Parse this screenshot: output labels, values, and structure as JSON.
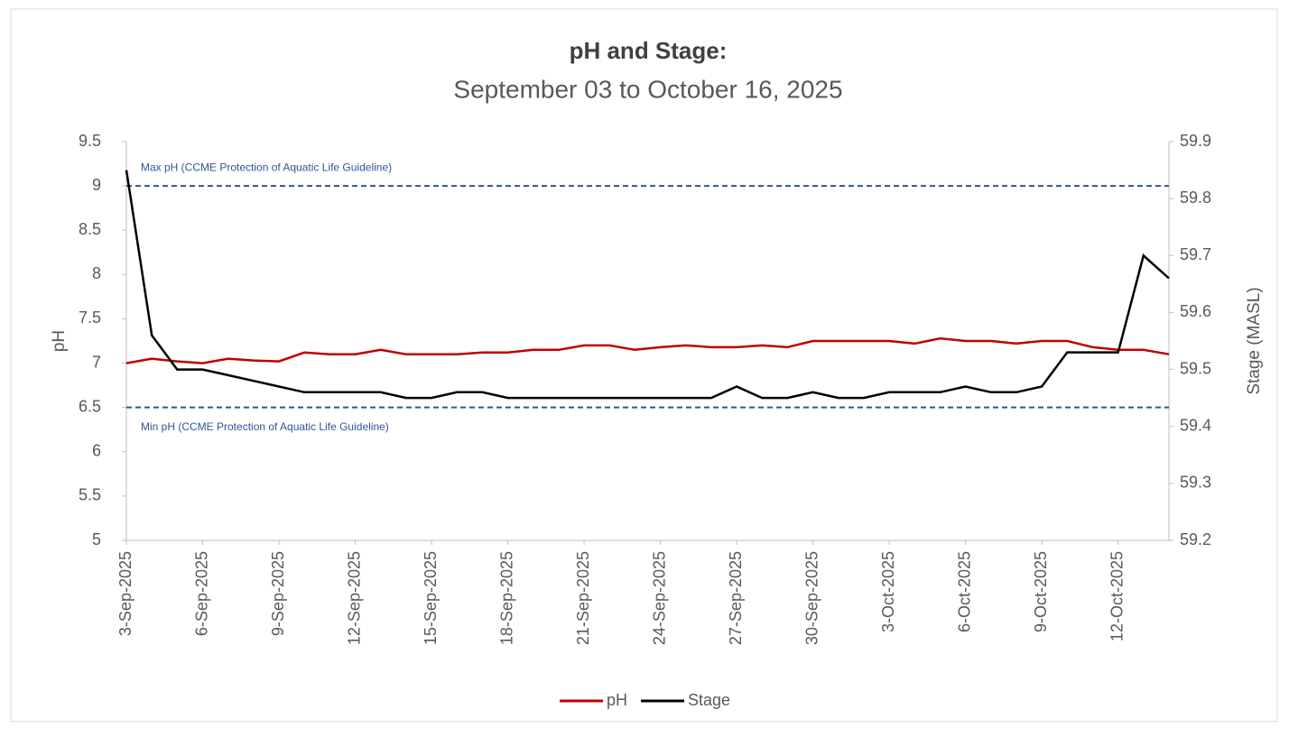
{
  "chart_data": {
    "type": "line",
    "title": "pH and Stage:",
    "subtitle": "September 03 to October 16, 2025",
    "y_label": "pH",
    "y2_label": "Stage (MASL)",
    "x": [
      "2025-09-03",
      "2025-09-04",
      "2025-09-05",
      "2025-09-06",
      "2025-09-07",
      "2025-09-08",
      "2025-09-09",
      "2025-09-10",
      "2025-09-11",
      "2025-09-12",
      "2025-09-13",
      "2025-09-14",
      "2025-09-15",
      "2025-09-16",
      "2025-09-17",
      "2025-09-18",
      "2025-09-19",
      "2025-09-20",
      "2025-09-21",
      "2025-09-22",
      "2025-09-23",
      "2025-09-24",
      "2025-09-25",
      "2025-09-26",
      "2025-09-27",
      "2025-09-28",
      "2025-09-29",
      "2025-09-30",
      "2025-10-01",
      "2025-10-02",
      "2025-10-03",
      "2025-10-04",
      "2025-10-05",
      "2025-10-06",
      "2025-10-07",
      "2025-10-08",
      "2025-10-09",
      "2025-10-10",
      "2025-10-11",
      "2025-10-12",
      "2025-10-13",
      "2025-10-14"
    ],
    "series": [
      {
        "name": "pH",
        "color": "#c00000",
        "values": [
          7.0,
          7.05,
          7.02,
          7.0,
          7.05,
          7.03,
          7.02,
          7.12,
          7.1,
          7.1,
          7.15,
          7.1,
          7.1,
          7.1,
          7.12,
          7.12,
          7.15,
          7.15,
          7.2,
          7.2,
          7.15,
          7.18,
          7.2,
          7.18,
          7.18,
          7.2,
          7.18,
          7.25,
          7.25,
          7.25,
          7.25,
          7.22,
          7.28,
          7.25,
          7.25,
          7.22,
          7.25,
          7.25,
          7.18,
          7.15,
          7.15,
          7.1
        ]
      },
      {
        "name": "Stage",
        "color": "#000000",
        "axis": "y2",
        "values": [
          59.85,
          59.56,
          59.5,
          59.5,
          59.49,
          59.48,
          59.47,
          59.46,
          59.46,
          59.46,
          59.46,
          59.45,
          59.45,
          59.46,
          59.46,
          59.45,
          59.45,
          59.45,
          59.45,
          59.45,
          59.45,
          59.45,
          59.45,
          59.45,
          59.47,
          59.45,
          59.45,
          59.46,
          59.45,
          59.45,
          59.46,
          59.46,
          59.46,
          59.47,
          59.46,
          59.46,
          59.47,
          59.53,
          59.53,
          59.53,
          59.7,
          59.66
        ]
      }
    ],
    "reference_lines": [
      {
        "value": 9,
        "label": "Max pH (CCME Protection of Aquatic Life Guideline)",
        "color": "#2f5597"
      },
      {
        "value": 6.5,
        "label": "Min pH (CCME  Protection of Aquatic Life Guideline)",
        "color": "#2f5597"
      }
    ],
    "xlim": [
      "2025-09-03",
      "2025-10-14"
    ],
    "xticks": [
      {
        "value": "2025-09-03",
        "label": "3-Sep-2025"
      },
      {
        "value": "2025-09-06",
        "label": "6-Sep-2025"
      },
      {
        "value": "2025-09-09",
        "label": "9-Sep-2025"
      },
      {
        "value": "2025-09-12",
        "label": "12-Sep-2025"
      },
      {
        "value": "2025-09-15",
        "label": "15-Sep-2025"
      },
      {
        "value": "2025-09-18",
        "label": "18-Sep-2025"
      },
      {
        "value": "2025-09-21",
        "label": "21-Sep-2025"
      },
      {
        "value": "2025-09-24",
        "label": "24-Sep-2025"
      },
      {
        "value": "2025-09-27",
        "label": "27-Sep-2025"
      },
      {
        "value": "2025-09-30",
        "label": "30-Sep-2025"
      },
      {
        "value": "2025-10-03",
        "label": "3-Oct-2025"
      },
      {
        "value": "2025-10-06",
        "label": "6-Oct-2025"
      },
      {
        "value": "2025-10-09",
        "label": "9-Oct-2025"
      },
      {
        "value": "2025-10-12",
        "label": "12-Oct-2025"
      }
    ],
    "ylim": [
      5,
      9.5
    ],
    "yticks": [
      5,
      5.5,
      6,
      6.5,
      7,
      7.5,
      8,
      8.5,
      9,
      9.5
    ],
    "y2lim": [
      59.2,
      59.9
    ],
    "y2ticks": [
      59.2,
      59.3,
      59.4,
      59.5,
      59.6,
      59.7,
      59.8,
      59.9
    ],
    "legend": "bottom",
    "grid": false
  }
}
